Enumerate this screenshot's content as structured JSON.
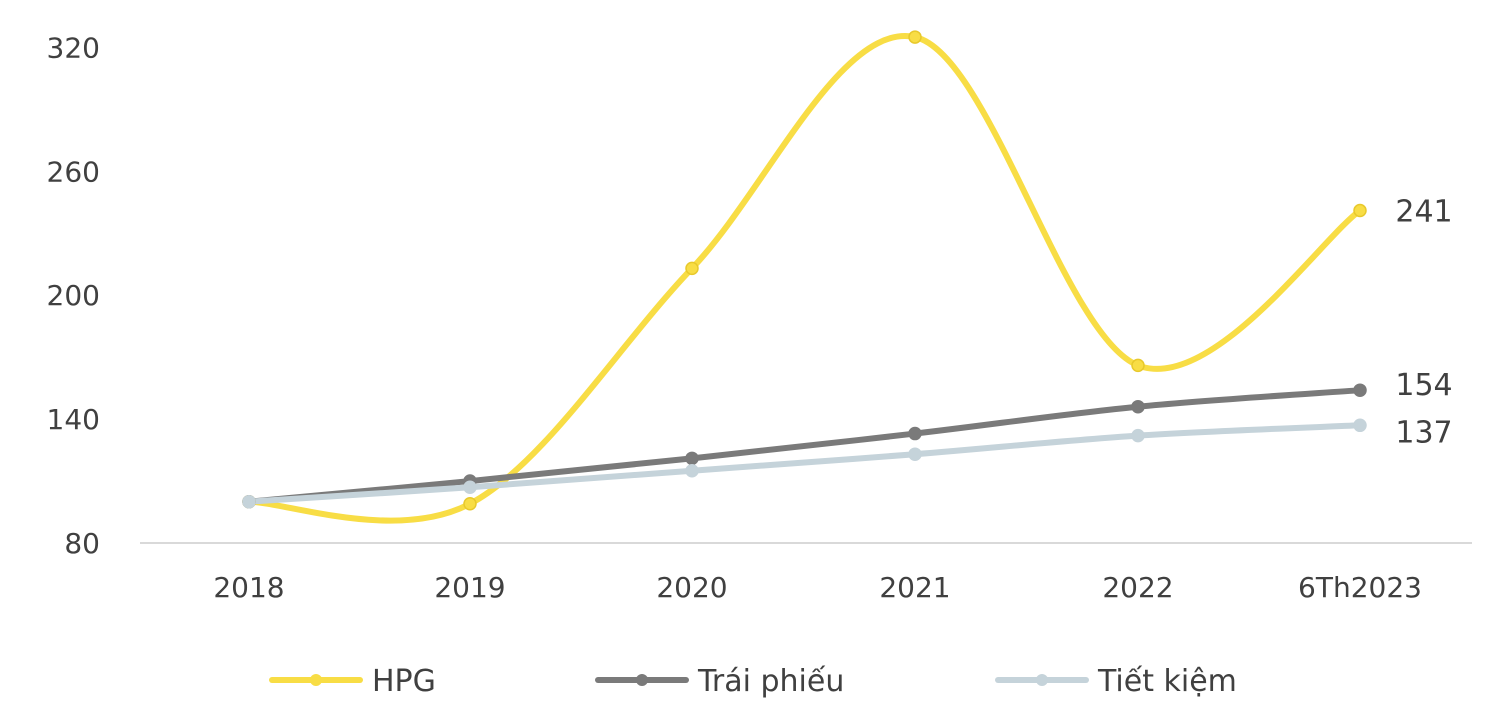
{
  "chart_data": {
    "type": "line",
    "categories": [
      "2018",
      "2019",
      "2020",
      "2021",
      "2022",
      "6Th2023"
    ],
    "y_ticks": [
      "80",
      "140",
      "200",
      "260",
      "320"
    ],
    "ylim": [
      80,
      320
    ],
    "grid": false,
    "legend_position": "bottom",
    "series": [
      {
        "name": "HPG",
        "values": [
          100,
          99,
          213,
          325,
          166,
          241
        ],
        "color": "#F8DD45",
        "end_label": "241"
      },
      {
        "name": "Trái phiếu",
        "values": [
          100,
          110,
          121,
          133,
          146,
          154
        ],
        "color": "#7A7A7A",
        "end_label": "154"
      },
      {
        "name": "Tiết kiệm",
        "values": [
          100,
          107,
          115,
          123,
          132,
          137
        ],
        "color": "#C5D3DA",
        "end_label": "137"
      }
    ]
  }
}
